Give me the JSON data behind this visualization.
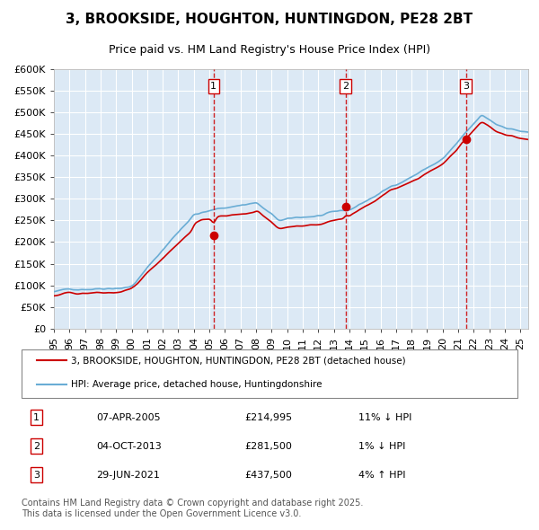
{
  "title": "3, BROOKSIDE, HOUGHTON, HUNTINGDON, PE28 2BT",
  "subtitle": "Price paid vs. HM Land Registry's House Price Index (HPI)",
  "legend_line1": "3, BROOKSIDE, HOUGHTON, HUNTINGDON, PE28 2BT (detached house)",
  "legend_line2": "HPI: Average price, detached house, Huntingdonshire",
  "footer": "Contains HM Land Registry data © Crown copyright and database right 2025.\nThis data is licensed under the Open Government Licence v3.0.",
  "sales": [
    {
      "num": 1,
      "date": "07-APR-2005",
      "price": 214995,
      "pct": "11%",
      "dir": "↓"
    },
    {
      "num": 2,
      "date": "04-OCT-2013",
      "price": 281500,
      "pct": "1%",
      "dir": "↓"
    },
    {
      "num": 3,
      "date": "29-JUN-2021",
      "price": 437500,
      "pct": "4%",
      "dir": "↑"
    }
  ],
  "sale_dates_decimal": [
    2005.27,
    2013.76,
    2021.49
  ],
  "sale_prices": [
    214995,
    281500,
    437500
  ],
  "vline_dates": [
    2005.27,
    2013.76,
    2021.49
  ],
  "ylim": [
    0,
    600000
  ],
  "yticks": [
    0,
    50000,
    100000,
    150000,
    200000,
    250000,
    300000,
    350000,
    400000,
    450000,
    500000,
    550000,
    600000
  ],
  "xlim_start": 1995.0,
  "xlim_end": 2025.5,
  "background_color": "#dce9f5",
  "plot_bg": "#dce9f5",
  "hpi_color": "#6aadd5",
  "price_color": "#cc0000",
  "vline_color": "#cc0000",
  "title_fontsize": 11,
  "subtitle_fontsize": 9,
  "tick_fontsize": 8,
  "footer_fontsize": 7
}
